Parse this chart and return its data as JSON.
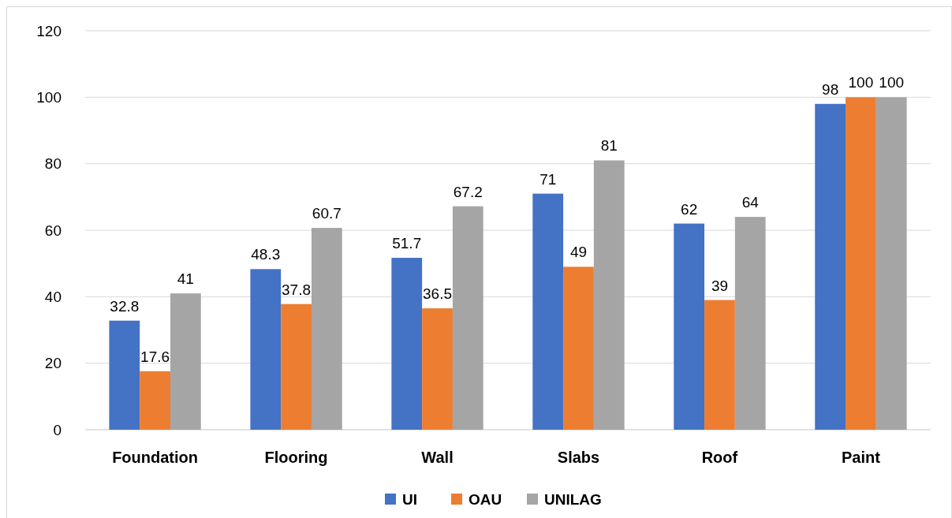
{
  "chart_data": {
    "type": "bar",
    "categories": [
      "Foundation",
      "Flooring",
      "Wall",
      "Slabs",
      "Roof",
      "Paint"
    ],
    "series": [
      {
        "name": "UI",
        "color": "#4472c4",
        "values": [
          32.8,
          48.3,
          51.7,
          71,
          62,
          98
        ]
      },
      {
        "name": "OAU",
        "color": "#ed7d31",
        "values": [
          17.6,
          37.8,
          36.5,
          49,
          39,
          100
        ]
      },
      {
        "name": "UNILAG",
        "color": "#a5a5a5",
        "values": [
          41,
          60.7,
          67.2,
          81,
          64,
          100
        ]
      }
    ],
    "ylim": [
      0,
      120
    ],
    "yticks": [
      0,
      20,
      40,
      60,
      80,
      100,
      120
    ],
    "grid": "y",
    "legend": "bottom",
    "data_labels": true
  }
}
